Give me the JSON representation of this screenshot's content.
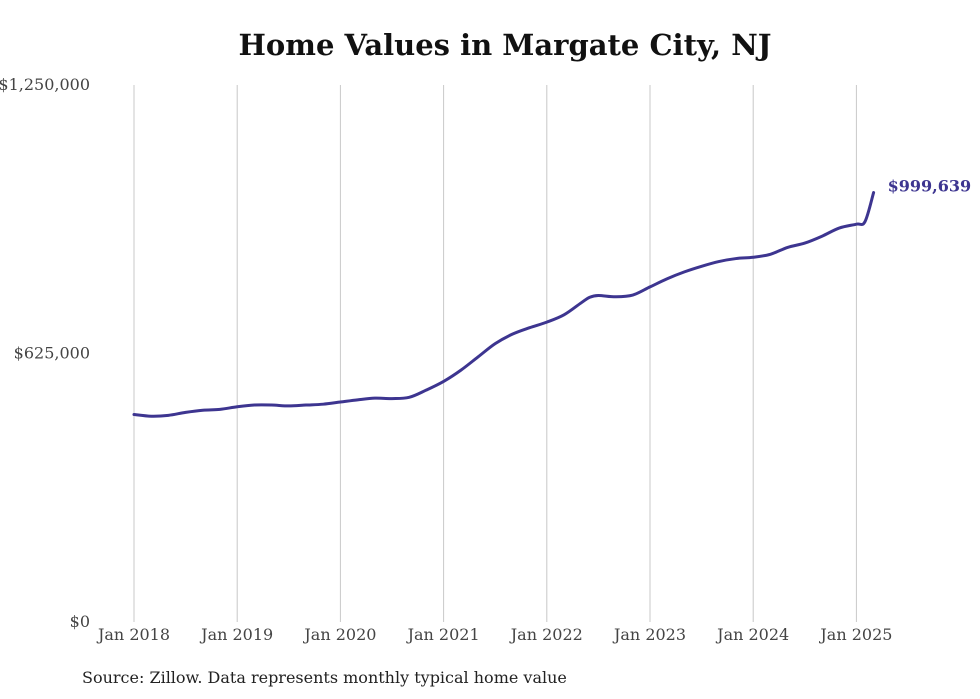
{
  "chart_data": {
    "type": "line",
    "title": "Home Values in Margate City, NJ",
    "source": "Source: Zillow. Data represents monthly typical home value",
    "xlabel": "",
    "ylabel": "",
    "ylim": [
      0,
      1250000
    ],
    "y_ticks": [
      {
        "value": 0,
        "label": "$0"
      },
      {
        "value": 625000,
        "label": "$625,000"
      },
      {
        "value": 1250000,
        "label": "$1,250,000"
      }
    ],
    "x_ticks": [
      {
        "year": 2018,
        "label": "Jan 2018"
      },
      {
        "year": 2019,
        "label": "Jan 2019"
      },
      {
        "year": 2020,
        "label": "Jan 2020"
      },
      {
        "year": 2021,
        "label": "Jan 2021"
      },
      {
        "year": 2022,
        "label": "Jan 2022"
      },
      {
        "year": 2023,
        "label": "Jan 2023"
      },
      {
        "year": 2024,
        "label": "Jan 2024"
      },
      {
        "year": 2025,
        "label": "Jan 2025"
      }
    ],
    "grid": {
      "vertical": true,
      "horizontal": false
    },
    "line_color": "#3d3590",
    "end_label": "$999,639",
    "series": [
      {
        "x": [
          "2018-01",
          "2018-03",
          "2018-05",
          "2018-07",
          "2018-09",
          "2018-11",
          "2019-01",
          "2019-03",
          "2019-05",
          "2019-07",
          "2019-09",
          "2019-11",
          "2020-01",
          "2020-03",
          "2020-05",
          "2020-07",
          "2020-09",
          "2020-11",
          "2021-01",
          "2021-03",
          "2021-05",
          "2021-07",
          "2021-09",
          "2021-11",
          "2022-01",
          "2022-03",
          "2022-05",
          "2022-06",
          "2022-07",
          "2022-09",
          "2022-11",
          "2023-01",
          "2023-03",
          "2023-05",
          "2023-07",
          "2023-09",
          "2023-11",
          "2024-01",
          "2024-03",
          "2024-05",
          "2024-07",
          "2024-09",
          "2024-11",
          "2025-01",
          "2025-02"
        ],
        "y": [
          483000,
          479000,
          481000,
          488000,
          493000,
          495000,
          501000,
          505000,
          505000,
          503000,
          505000,
          507000,
          512000,
          517000,
          521000,
          520000,
          523000,
          540000,
          560000,
          586000,
          617000,
          648000,
          670000,
          685000,
          698000,
          715000,
          743000,
          756000,
          760000,
          757000,
          761000,
          780000,
          799000,
          815000,
          828000,
          839000,
          846000,
          849000,
          856000,
          872000,
          882000,
          898000,
          917000,
          926000,
          932000
        ]
      },
      {
        "x": [
          "2025-02",
          "2025-03"
        ],
        "y": [
          932000,
          999639
        ]
      }
    ]
  }
}
